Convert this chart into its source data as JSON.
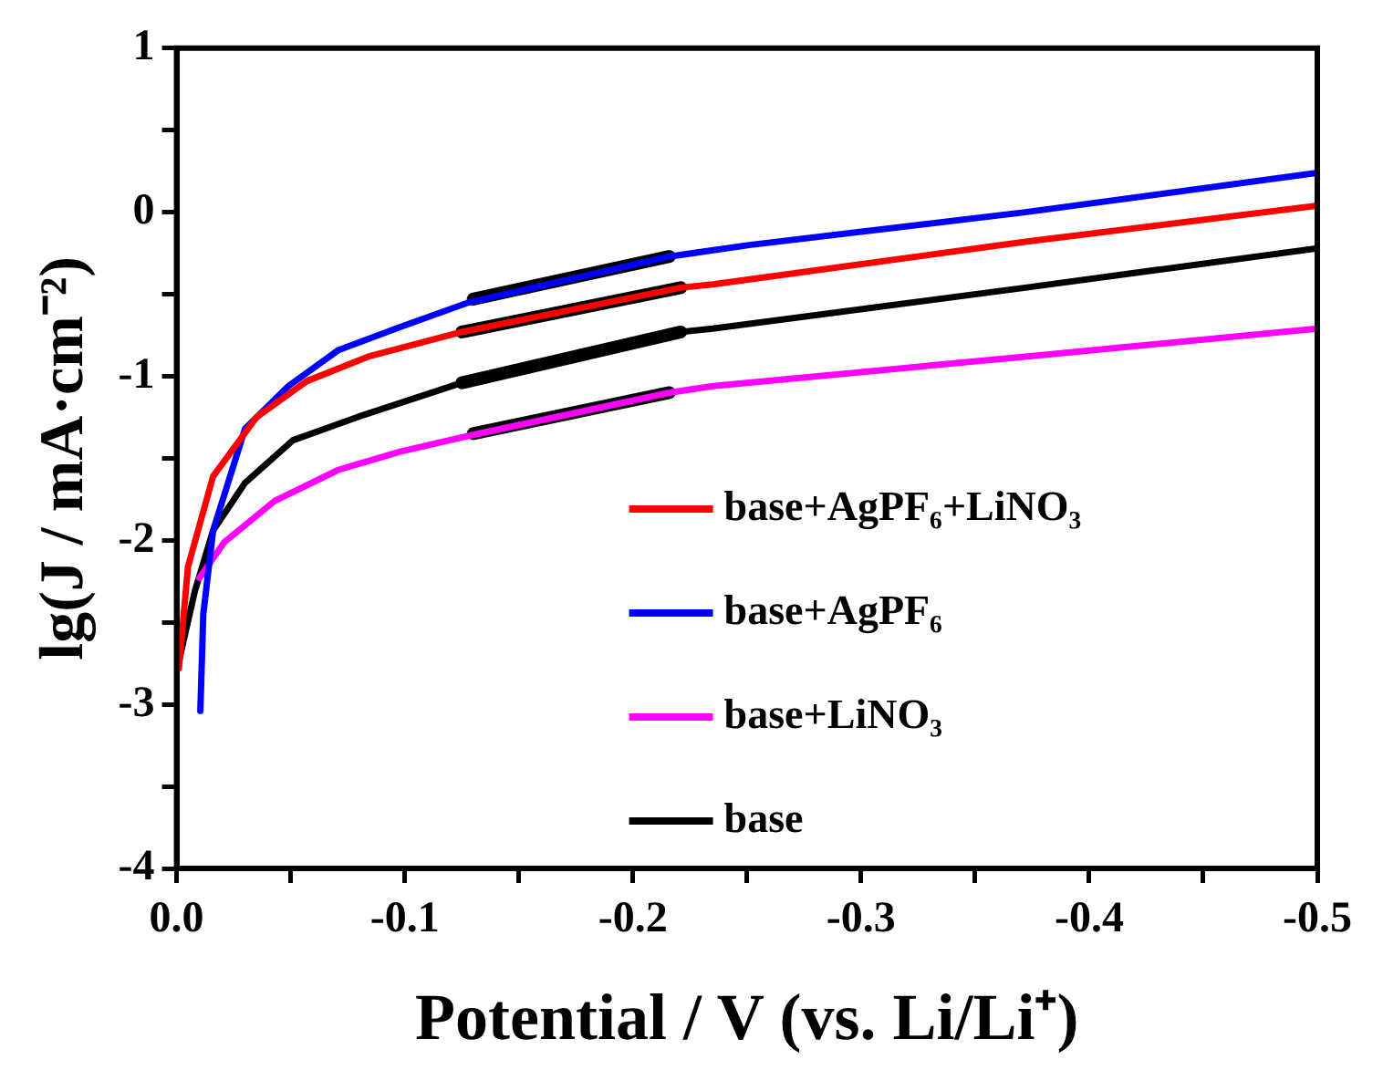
{
  "chart_data": {
    "type": "line",
    "xlabel": "Potential / V (vs. Li/Li⁺)",
    "ylabel": "lg(J / mA·cm⁻²)",
    "xlim": [
      0,
      -0.5
    ],
    "xticks": [
      {
        "value": 0,
        "label": "0.0"
      },
      {
        "value": -0.05,
        "label": null
      },
      -0.1,
      {
        "value": -0.15,
        "label": null
      },
      -0.2,
      {
        "value": -0.25,
        "label": null
      },
      -0.3,
      {
        "value": -0.35,
        "label": null
      },
      -0.4,
      {
        "value": -0.45,
        "label": null
      },
      -0.5
    ],
    "ylim": [
      -4,
      1
    ],
    "yticks": [
      -4,
      {
        "value": -3.5,
        "label": null
      },
      -3,
      {
        "value": -2.5,
        "label": null
      },
      -2,
      {
        "value": -1.5,
        "label": null
      },
      -1,
      {
        "value": -0.5,
        "label": null
      },
      0,
      {
        "value": 0.5,
        "label": null
      },
      1
    ],
    "grid": false,
    "legend": "bottom right",
    "marker": "none",
    "line_style": "solid",
    "series": [
      {
        "name": "base+AgPF₆+LiNO₃",
        "color": "#ff0000",
        "x": [
          -0.001,
          -0.005,
          -0.016,
          -0.035,
          -0.057,
          -0.084,
          -0.125,
          -0.221,
          -0.235,
          -0.372,
          -0.5
        ],
        "values": [
          -2.78,
          -2.16,
          -1.61,
          -1.25,
          -1.03,
          -0.88,
          -0.73,
          -0.46,
          -0.44,
          -0.18,
          0.04
        ]
      },
      {
        "name": "base+AgPF₆",
        "color": "#0000ff",
        "x": [
          -0.0104,
          -0.0117,
          -0.016,
          -0.03,
          -0.049,
          -0.071,
          -0.098,
          -0.128,
          -0.216,
          -0.251,
          -0.372,
          -0.5
        ],
        "values": [
          -3.04,
          -2.45,
          -1.94,
          -1.32,
          -1.06,
          -0.84,
          -0.7,
          -0.55,
          -0.27,
          -0.2,
          0.0,
          0.24
        ]
      },
      {
        "name": "base+LiNO₃",
        "color": "#ff00ff",
        "x": [
          -0.01,
          -0.021,
          -0.043,
          -0.071,
          -0.098,
          -0.129,
          -0.216,
          -0.235,
          -0.372,
          -0.5
        ],
        "values": [
          -2.23,
          -2.01,
          -1.76,
          -1.57,
          -1.46,
          -1.36,
          -1.1,
          -1.06,
          -0.88,
          -0.71
        ]
      },
      {
        "name": "base",
        "color": "#000000",
        "x": [
          0,
          -0.008,
          -0.016,
          -0.03,
          -0.051,
          -0.079,
          -0.125,
          -0.221,
          -0.235,
          -0.372,
          -0.5
        ],
        "values": [
          -2.8,
          -2.31,
          -1.94,
          -1.65,
          -1.39,
          -1.25,
          -1.04,
          -0.73,
          -0.71,
          -0.46,
          -0.22
        ]
      },
      {
        "color": "#000000",
        "x": [
          -0.13,
          -0.216
        ],
        "values": [
          -0.53,
          -0.27
        ]
      },
      {
        "color": "#000000",
        "x": [
          -0.125,
          -0.221
        ],
        "values": [
          -0.73,
          -0.46
        ]
      },
      {
        "color": "#000000",
        "x": [
          -0.125,
          -0.221
        ],
        "values": [
          -1.04,
          -0.73
        ]
      },
      {
        "color": "#000000",
        "x": [
          -0.13,
          -0.216
        ],
        "values": [
          -1.35,
          -1.1
        ]
      }
    ]
  }
}
